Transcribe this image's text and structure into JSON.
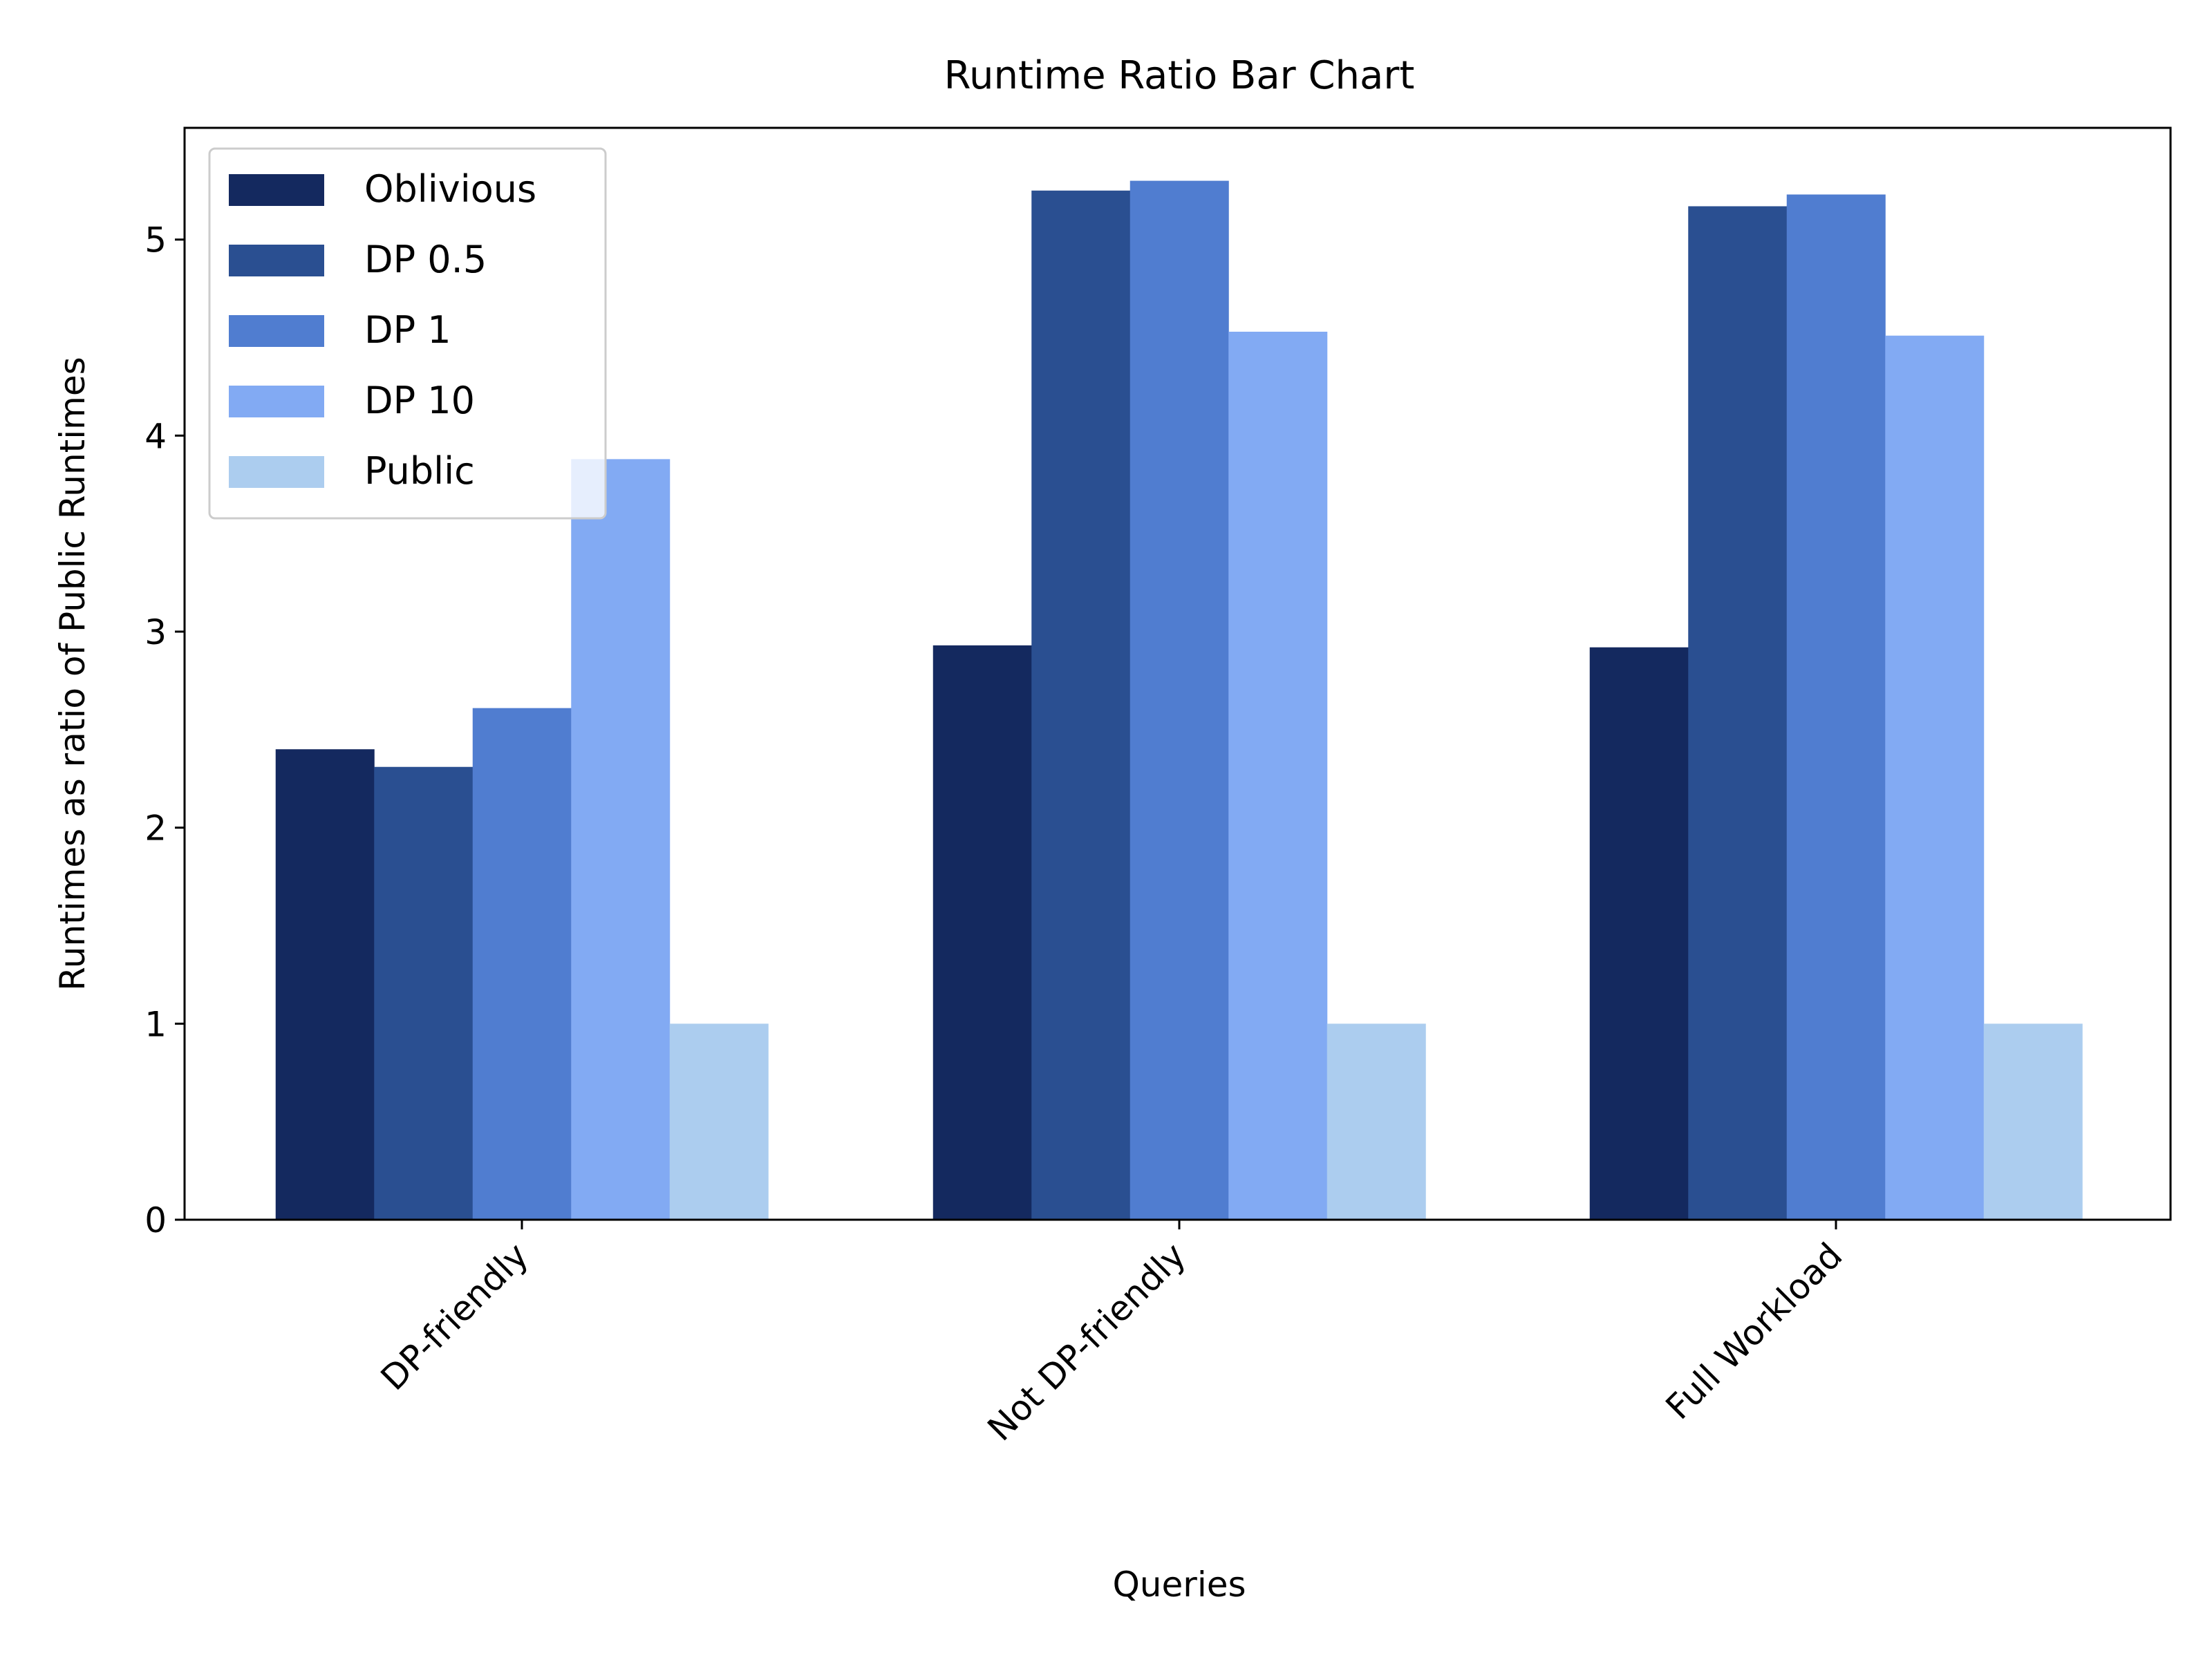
{
  "chart_data": {
    "type": "bar",
    "title": "Runtime Ratio Bar Chart",
    "xlabel": "Queries",
    "ylabel": "Runtimes as ratio of Public Runtimes",
    "categories": [
      "DP-friendly",
      "Not DP-friendly",
      "Full Workload"
    ],
    "series": [
      {
        "name": "Oblivious",
        "color": "#14295f",
        "values": [
          2.4,
          2.93,
          2.92
        ]
      },
      {
        "name": "DP 0.5",
        "color": "#2a4f91",
        "values": [
          2.31,
          5.25,
          5.17
        ]
      },
      {
        "name": "DP 1",
        "color": "#507dd0",
        "values": [
          2.61,
          5.3,
          5.23
        ]
      },
      {
        "name": "DP 10",
        "color": "#82aaf3",
        "values": [
          3.88,
          4.53,
          4.51
        ]
      },
      {
        "name": "Public",
        "color": "#accdef",
        "values": [
          1.0,
          1.0,
          1.0
        ]
      }
    ],
    "ylim": [
      0,
      5.57
    ],
    "yticks": [
      0,
      1,
      2,
      3,
      4,
      5
    ],
    "ytick_labels": [
      "0",
      "1",
      "2",
      "3",
      "4",
      "5"
    ],
    "legend_position": "top-left",
    "grid": false
  }
}
